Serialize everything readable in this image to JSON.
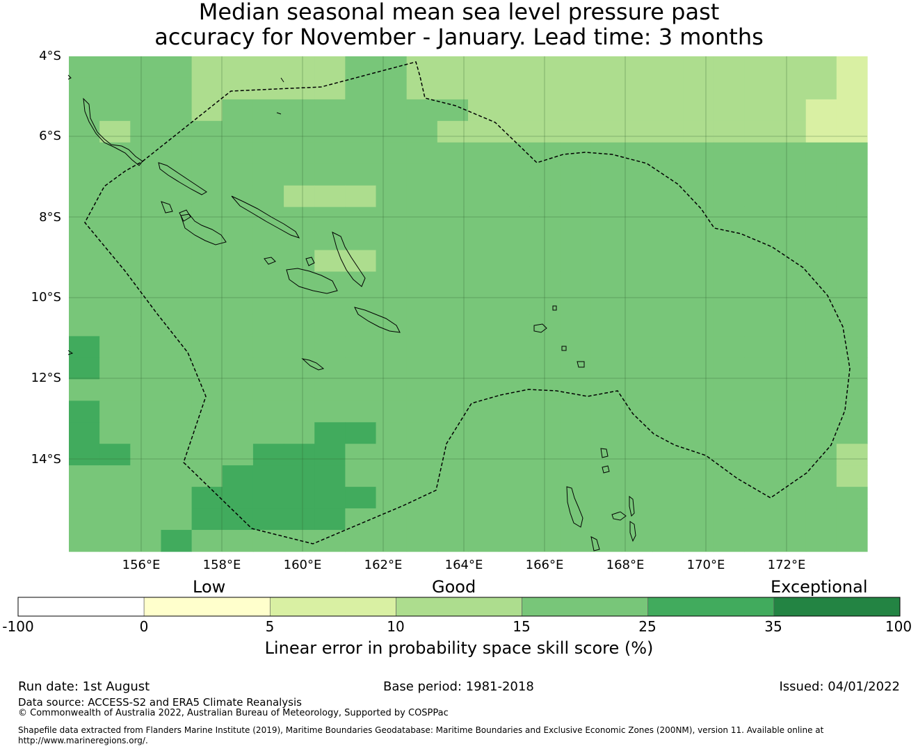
{
  "title": {
    "line1": "Median seasonal mean sea level pressure past",
    "line2": "accuracy for November - January. Lead time: 3 months"
  },
  "map": {
    "lat_labels": [
      "4°S",
      "6°S",
      "8°S",
      "10°S",
      "12°S",
      "14°S"
    ],
    "lon_labels": [
      "156°E",
      "158°E",
      "160°E",
      "162°E",
      "164°E",
      "166°E",
      "168°E",
      "170°E",
      "172°E"
    ],
    "grid_key": {
      "A": "#ffffcc",
      "B": "#d9f0a3",
      "C": "#addd8e",
      "D": "#78c679",
      "E": "#41ab5d"
    },
    "grid_rows": [
      "DDDDCCCCCDDCCCCCCCCCCCCCCB",
      "DDDDCCCCCDDCCCCCCCCCCCCCCB",
      "DDDDCDDDDDDDDCCCCCCCCCCCBB",
      "DCDDDDDDDDDDCCCCCCCCCCCCBB",
      "DDDDDDDDDDDDDDDDDDDDDDDDDD",
      "DDDDDDDDDDDDDDDDDDDDDDDDDD",
      "DDDDDDDCCCDDDDDDDDDDDDDDDD",
      "DDDDDDDDDDDDDDDDDDDDDDDDDD",
      "DDDDDDDDDDDDDDDDDDDDDDDDDD",
      "DDDDDDDDCCDDDDDDDDDDDDDDDD",
      "DDDDDDDDDDDDDDDDDDDDDDDDDD",
      "DDDDDDDDDDDDDDDDDDDDDDDDDD",
      "DDDDDDDDDDDDDDDDDDDDDDDDDD",
      "EDDDDDDDDDDDDDDDDDDDDDDDDD",
      "EDDDDDDDDDDDDDDDDDDDDDDDDD",
      "DDDDDDDDDDDDDDDDDDDDDDDDDD",
      "EDDDDDDDDDDDDDDDDDDDDDDDDD",
      "EDDDDDDDEEDDDDDDDDDDDDDDDD",
      "EEDDDDEEEDDDDDDDDDDDDDDDDC",
      "DDDDDEEEEDDDDDDDDDDDDDDDDC",
      "DDDDEEEEEEDDDDDDDDDDDDDDDD",
      "DDDDEEEEEDDDDDDDDDDDDDDDDD",
      "DDDEDDDDDDDDDDDDDDDDDDDDDD"
    ]
  },
  "categories": {
    "low": "Low",
    "good": "Good",
    "exceptional": "Exceptional"
  },
  "colorbar": {
    "bins": [
      {
        "from": "-100",
        "to": "0",
        "color": "#ffffff"
      },
      {
        "from": "0",
        "to": "5",
        "color": "#ffffcc"
      },
      {
        "from": "5",
        "to": "10",
        "color": "#d9f0a3"
      },
      {
        "from": "10",
        "to": "15",
        "color": "#addd8e"
      },
      {
        "from": "15",
        "to": "25",
        "color": "#78c679"
      },
      {
        "from": "25",
        "to": "35",
        "color": "#41ab5d"
      },
      {
        "from": "35",
        "to": "100",
        "color": "#238443"
      }
    ],
    "ticks": [
      "-100",
      "0",
      "5",
      "10",
      "15",
      "25",
      "35",
      "100"
    ],
    "label": "Linear error in probability space skill score (%)"
  },
  "footer": {
    "run_date": "Run date: 1st August",
    "base_period": "Base period: 1981-2018",
    "issued": "Issued: 04/01/2022",
    "data_source": "Data source: ACCESS-S2 and ERA5 Climate Reanalysis",
    "copyright": "© Commonwealth of Australia 2022, Australian Bureau of Meteorology, Supported by COSPPac",
    "shapefile_line1": "Shapefile data extracted from Flanders Marine Institute (2019), Maritime Boundaries Geodatabase: Maritime Boundaries and Exclusive Economic Zones (200NM), version 11. Available online at",
    "shapefile_line2": "http://www.marineregions.org/."
  }
}
